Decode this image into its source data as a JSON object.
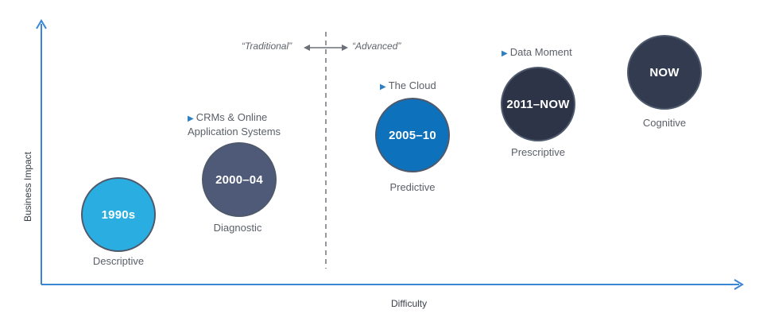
{
  "axes": {
    "x_label": "Difficulty",
    "y_label": "Business Impact"
  },
  "divider": {
    "left_text": "“Traditional”",
    "right_text": "“Advanced”"
  },
  "stages": [
    {
      "period": "1990s",
      "label": "Descriptive",
      "color": "#2aaee2"
    },
    {
      "period": "2000–04",
      "label": "Diagnostic",
      "color": "#4f5a78",
      "note_line1": "CRMs & Online",
      "note_line2": "Application Systems"
    },
    {
      "period": "2005–10",
      "label": "Predictive",
      "color": "#0e71bb",
      "note_line1": "The Cloud"
    },
    {
      "period": "2011–NOW",
      "label": "Prescriptive",
      "color": "#2e3447",
      "note_line1": "Data Moment"
    },
    {
      "period": "NOW",
      "label": "Cognitive",
      "color": "#333b50"
    }
  ],
  "colors": {
    "axis": "#3a86d4",
    "divider": "#7a7f86",
    "marker": "#2f7fc3"
  }
}
